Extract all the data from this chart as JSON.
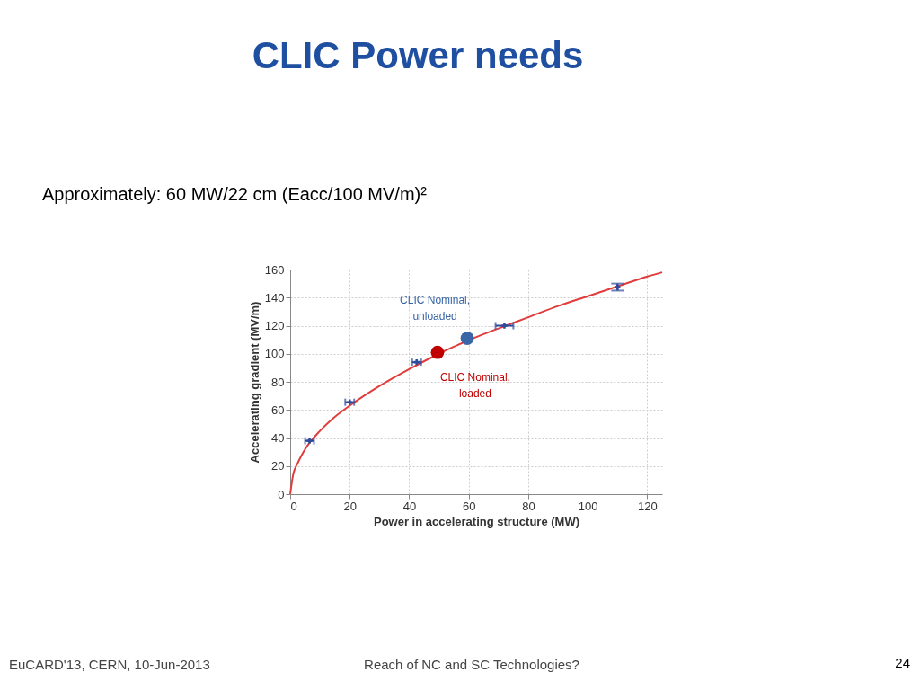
{
  "chart_data": {
    "type": "scatter",
    "title": "CLIC Power needs",
    "xlabel": "Power in accelerating structure (MW)",
    "ylabel": "Accelerating gradient (MV/m)",
    "xlim": [
      0,
      125
    ],
    "ylim": [
      0,
      160
    ],
    "xticks": [
      0,
      20,
      40,
      60,
      80,
      100,
      120
    ],
    "yticks": [
      0,
      20,
      40,
      60,
      80,
      100,
      120,
      140,
      160
    ],
    "grid": true,
    "annotations": [
      "Approximately: 60 MW/22 cm (Eacc/100 MV/m)²",
      "EuCARD'13, CERN, 10-Jun-2013",
      "Reach of NC and SC Technologies?",
      "24"
    ],
    "series": [
      {
        "type": "line",
        "color": "#e03c3c",
        "marker": "none",
        "x": [
          0,
          1,
          2.5,
          5,
          10,
          15,
          20,
          30,
          40,
          50,
          55,
          65,
          70,
          80,
          90,
          100,
          110,
          120,
          125
        ],
        "values": [
          0,
          14,
          22,
          32,
          45,
          55,
          63,
          77,
          89,
          100,
          105,
          114,
          118,
          126,
          134,
          141,
          148,
          155,
          158
        ]
      },
      {
        "color": "#2e4a9a",
        "marker": "cross",
        "x": [
          6.5,
          20,
          42.5,
          72,
          110
        ],
        "values": [
          38,
          65.5,
          94,
          120,
          147.5
        ],
        "xerrors": [
          1.5,
          1.5,
          1.5,
          3,
          null
        ],
        "errors": [
          null,
          null,
          null,
          null,
          2.5
        ]
      },
      {
        "color": "#c00000",
        "marker": "circle",
        "name": "CLIC Nominal, loaded",
        "x": [
          49.5
        ],
        "values": [
          101
        ]
      },
      {
        "color": "#3a66a8",
        "marker": "circle",
        "name": "CLIC Nominal, unloaded",
        "x": [
          59.5
        ],
        "values": [
          111
        ]
      }
    ]
  }
}
